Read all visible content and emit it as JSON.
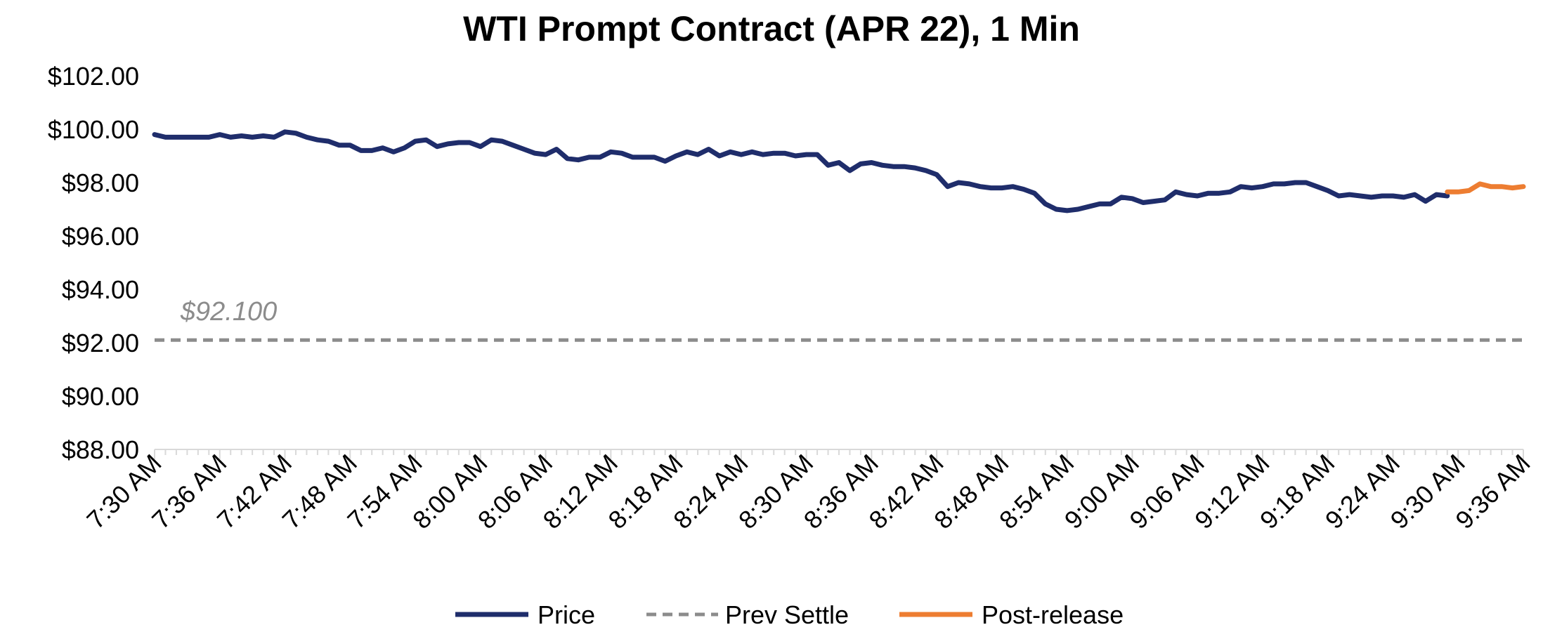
{
  "chart_data": {
    "type": "line",
    "title": "WTI Prompt Contract (APR 22), 1 Min",
    "xlabel": "",
    "ylabel": "",
    "ylim": [
      88,
      102
    ],
    "y_ticks": [
      "$102.00",
      "$100.00",
      "$98.00",
      "$96.00",
      "$94.00",
      "$92.00",
      "$90.00",
      "$88.00"
    ],
    "y_tick_values": [
      102,
      100,
      98,
      96,
      94,
      92,
      90,
      88
    ],
    "x_range_minutes": [
      0,
      126
    ],
    "x_tick_labels": [
      "7:30 AM",
      "7:36 AM",
      "7:42 AM",
      "7:48 AM",
      "7:54 AM",
      "8:00 AM",
      "8:06 AM",
      "8:12 AM",
      "8:18 AM",
      "8:24 AM",
      "8:30 AM",
      "8:36 AM",
      "8:42 AM",
      "8:48 AM",
      "8:54 AM",
      "9:00 AM",
      "9:06 AM",
      "9:12 AM",
      "9:18 AM",
      "9:24 AM",
      "9:30 AM",
      "9:36 AM"
    ],
    "x_tick_minutes": [
      0,
      6,
      12,
      18,
      24,
      30,
      36,
      42,
      48,
      54,
      60,
      66,
      72,
      78,
      84,
      90,
      96,
      102,
      108,
      114,
      120,
      126
    ],
    "grid": false,
    "legend_position": "bottom",
    "series": [
      {
        "name": "Price",
        "color": "#1f2d6b",
        "style": "solid",
        "x": [
          0,
          1,
          2,
          3,
          4,
          5,
          6,
          7,
          8,
          9,
          10,
          11,
          12,
          13,
          14,
          15,
          16,
          17,
          18,
          19,
          20,
          21,
          22,
          23,
          24,
          25,
          26,
          27,
          28,
          29,
          30,
          31,
          32,
          33,
          34,
          35,
          36,
          37,
          38,
          39,
          40,
          41,
          42,
          43,
          44,
          45,
          46,
          47,
          48,
          49,
          50,
          51,
          52,
          53,
          54,
          55,
          56,
          57,
          58,
          59,
          60,
          61,
          62,
          63,
          64,
          65,
          66,
          67,
          68,
          69,
          70,
          71,
          72,
          73,
          74,
          75,
          76,
          77,
          78,
          79,
          80,
          81,
          82,
          83,
          84,
          85,
          86,
          87,
          88,
          89,
          90,
          91,
          92,
          93,
          94,
          95,
          96,
          97,
          98,
          99,
          100,
          101,
          102,
          103,
          104,
          105,
          106,
          107,
          108,
          109,
          110,
          111,
          112,
          113,
          114,
          115,
          116,
          117,
          118,
          119
        ],
        "values": [
          99.8,
          99.7,
          99.7,
          99.7,
          99.7,
          99.7,
          99.8,
          99.7,
          99.75,
          99.7,
          99.75,
          99.7,
          99.9,
          99.85,
          99.7,
          99.6,
          99.55,
          99.4,
          99.4,
          99.2,
          99.2,
          99.3,
          99.15,
          99.3,
          99.55,
          99.6,
          99.35,
          99.45,
          99.5,
          99.5,
          99.35,
          99.6,
          99.55,
          99.4,
          99.25,
          99.1,
          99.05,
          99.25,
          98.9,
          98.85,
          98.95,
          98.95,
          99.15,
          99.1,
          98.95,
          98.95,
          98.95,
          98.8,
          99.0,
          99.15,
          99.05,
          99.25,
          99.0,
          99.15,
          99.05,
          99.15,
          99.05,
          99.1,
          99.1,
          99.0,
          99.05,
          99.05,
          98.65,
          98.75,
          98.45,
          98.7,
          98.75,
          98.65,
          98.6,
          98.6,
          98.55,
          98.45,
          98.3,
          97.85,
          98.0,
          97.95,
          97.85,
          97.8,
          97.8,
          97.85,
          97.75,
          97.6,
          97.2,
          97.0,
          96.95,
          97.0,
          97.1,
          97.2,
          97.2,
          97.45,
          97.4,
          97.25,
          97.3,
          97.35,
          97.65,
          97.55,
          97.5,
          97.6,
          97.6,
          97.65,
          97.85,
          97.8,
          97.85,
          97.95,
          97.95,
          98.0,
          98.0,
          97.85,
          97.7,
          97.5,
          97.55,
          97.5,
          97.45,
          97.5,
          97.5,
          97.45,
          97.55,
          97.3,
          97.55,
          97.5
        ]
      },
      {
        "name": "Prev Settle",
        "color": "#8c8c8c",
        "style": "dashed",
        "x": [
          0,
          126
        ],
        "values": [
          92.1,
          92.1
        ]
      },
      {
        "name": "Post-release",
        "color": "#ed7d31",
        "style": "solid",
        "x": [
          119,
          120,
          121,
          122,
          123,
          124,
          125,
          126
        ],
        "values": [
          97.65,
          97.65,
          97.7,
          97.95,
          97.85,
          97.85,
          97.8,
          97.85
        ]
      }
    ],
    "annotations": [
      {
        "text": "$92.100",
        "x": 2,
        "y": 92.1
      }
    ]
  }
}
